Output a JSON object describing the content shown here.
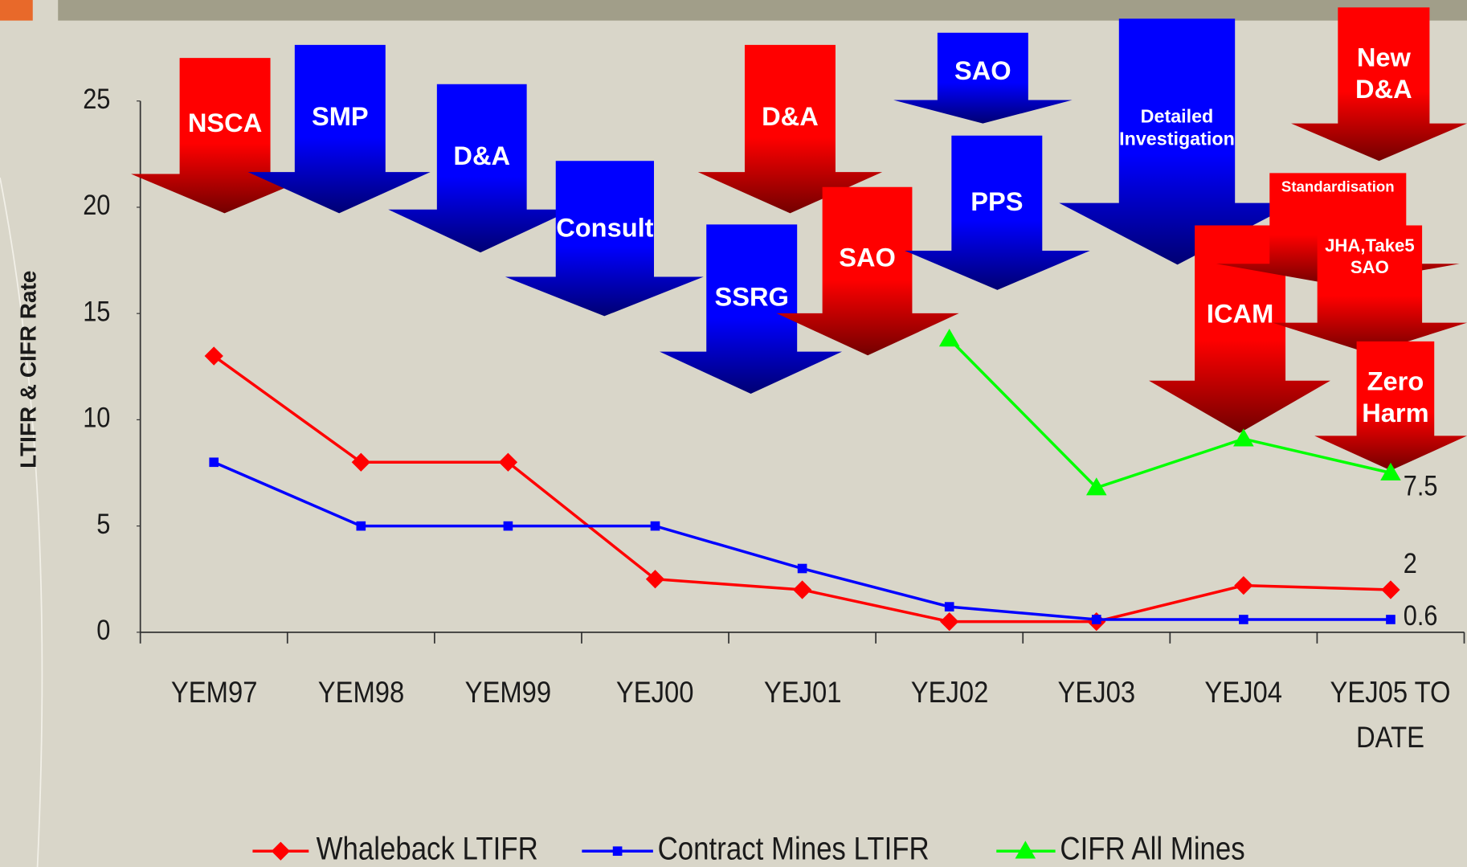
{
  "chart_data": {
    "type": "line",
    "y_label": "LTIFR & CIFR Rate",
    "categories": [
      "YEM97",
      "YEM98",
      "YEM99",
      "YEJ00",
      "YEJ01",
      "YEJ02",
      "YEJ03",
      "YEJ04",
      "YEJ05 TO DATE"
    ],
    "series": [
      {
        "name": "Whaleback LTIFR",
        "color": "#ff0000",
        "values": [
          13,
          8,
          8,
          2.5,
          2,
          0.5,
          0.5,
          2.2,
          2
        ]
      },
      {
        "name": "Contract Mines LTIFR",
        "color": "#0000ff",
        "values": [
          8,
          5,
          5,
          5,
          3,
          1.2,
          0.6,
          0.6,
          0.6
        ]
      },
      {
        "name": "CIFR All Mines",
        "color": "#00ff00",
        "values": [
          null,
          null,
          null,
          null,
          null,
          13.8,
          6.8,
          9.1,
          7.5
        ]
      }
    ],
    "ylim": [
      0,
      25
    ],
    "yticks": [
      0,
      5,
      10,
      15,
      20,
      25
    ],
    "annotations": [
      {
        "text": "NSCA",
        "color": "#ff0000"
      },
      {
        "text": "SMP",
        "color": "#0000ff"
      },
      {
        "text": "D&A",
        "color": "#0000ff"
      },
      {
        "text": "Consult",
        "color": "#0000ff"
      },
      {
        "text": "SSRG",
        "color": "#0000ff"
      },
      {
        "text": "D&A",
        "color": "#ff0000"
      },
      {
        "text": "SAO",
        "color": "#ff0000"
      },
      {
        "text": "SAO",
        "color": "#0000ff"
      },
      {
        "text": "PPS",
        "color": "#0000ff"
      },
      {
        "text": "Detailed Investigation",
        "color": "#0000ff"
      },
      {
        "text": "ICAM",
        "color": "#ff0000"
      },
      {
        "text": "Standardisation",
        "color": "#ff0000"
      },
      {
        "text": "JHA,Take5 SAO",
        "color": "#ff0000"
      },
      {
        "text": "New D&A",
        "color": "#ff0000"
      },
      {
        "text": "Zero Harm",
        "color": "#ff0000"
      }
    ]
  }
}
